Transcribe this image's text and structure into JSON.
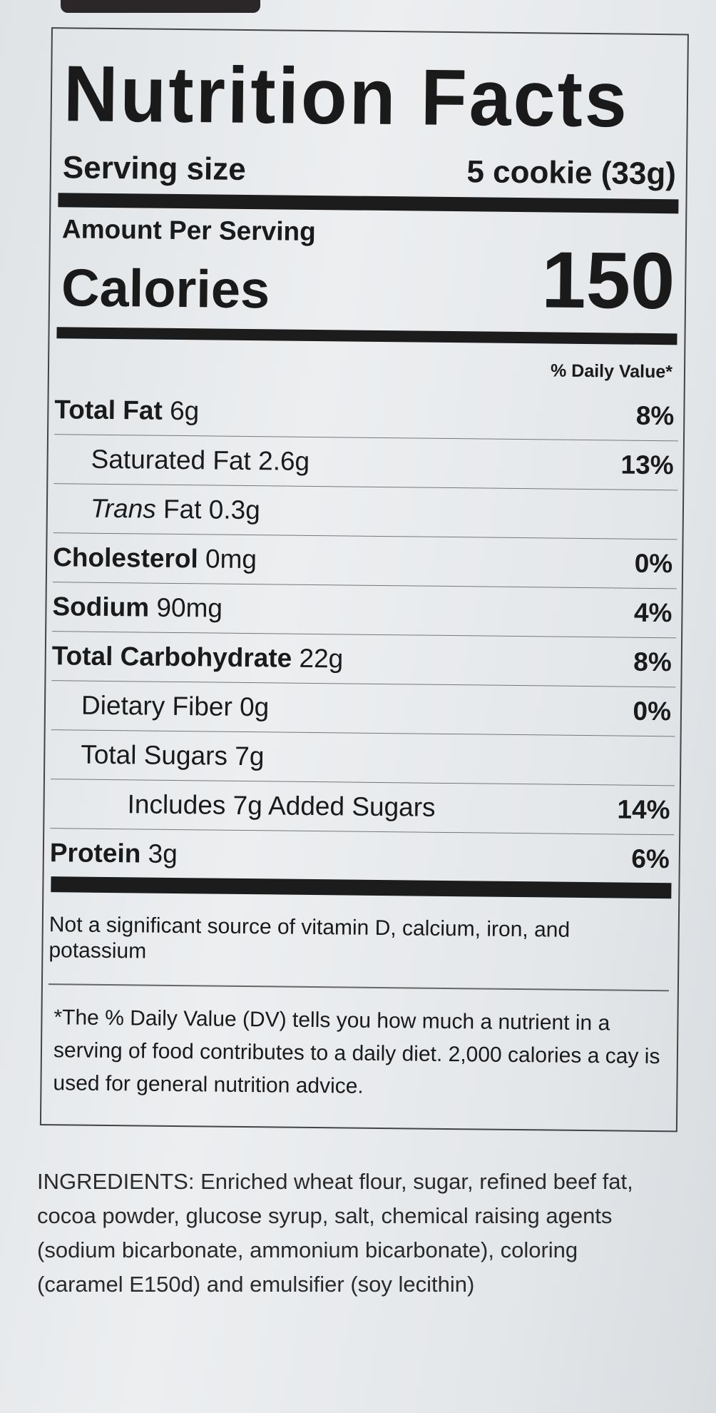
{
  "label": {
    "title": "Nutrition Facts",
    "serving_size_label": "Serving size",
    "serving_size_value": "5 cookie (33g)",
    "amount_per_serving": "Amount Per Serving",
    "calories_label": "Calories",
    "calories_value": "150",
    "daily_value_header": "% Daily Value*",
    "nutrients": [
      {
        "name": "Total Fat",
        "amount": "6g",
        "dv": "8%"
      },
      {
        "name": "Saturated Fat",
        "amount": "2.6g",
        "dv": "13%"
      },
      {
        "name": "Trans",
        "name_rest": "Fat",
        "amount": "0.3g",
        "dv": ""
      },
      {
        "name": "Cholesterol",
        "amount": "0mg",
        "dv": "0%"
      },
      {
        "name": "Sodium",
        "amount": "90mg",
        "dv": "4%"
      },
      {
        "name": "Total Carbohydrate",
        "amount": "22g",
        "dv": "8%"
      },
      {
        "name": "Dietary Fiber",
        "amount": "0g",
        "dv": "0%"
      },
      {
        "name": "Total Sugars",
        "amount": "7g",
        "dv": ""
      },
      {
        "name": "Includes 7g Added Sugars",
        "amount": "",
        "dv": "14%"
      },
      {
        "name": "Protein",
        "amount": "3g",
        "dv": "6%"
      }
    ],
    "not_significant": "Not a significant source of vitamin D, calcium, iron, and potassium",
    "footnote": "*The % Daily Value (DV) tells you how much a nutrient in a serving of food contributes to a daily diet. 2,000 calories a cay is used for general nutrition advice."
  },
  "ingredients": "INGREDIENTS: Enriched wheat flour, sugar, refined beef fat, cocoa powder, glucose syrup, salt, chemical raising agents (sodium bicarbonate, ammonium bicarbonate), coloring (caramel E150d) and emulsifier (soy lecithin)"
}
